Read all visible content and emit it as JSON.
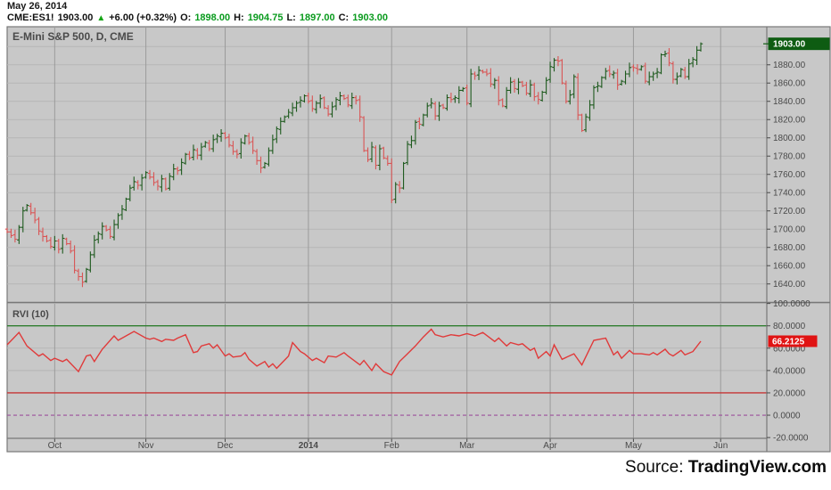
{
  "header": {
    "date": "May 26, 2014",
    "symbol": "CME:ES1!",
    "last": "1903.00",
    "up_arrow": "▲",
    "change": "+6.00 (+0.32%)",
    "open_label": "O:",
    "open": "1898.00",
    "high_label": "H:",
    "high": "1904.75",
    "low_label": "L:",
    "low": "1897.00",
    "close_label": "C:",
    "close": "1903.00"
  },
  "footer": {
    "source_label": "Source: ",
    "source_name": "TradingView.com"
  },
  "chart_data": {
    "type": "ohlc-bar",
    "title": "E-Mini S&P 500, D, CME",
    "timeframe": "D",
    "grid": true,
    "legend_position": "top-left",
    "price_pane": {
      "ylim": [
        1620.2,
        1921.7
      ],
      "axis_ticks": [
        1880,
        1860,
        1840,
        1820,
        1800,
        1780,
        1760,
        1740,
        1720,
        1700,
        1680,
        1660,
        1640
      ],
      "grid_levels": [
        1900,
        1880,
        1860,
        1840,
        1820,
        1800,
        1780,
        1760,
        1740,
        1720,
        1700,
        1680,
        1660,
        1640
      ],
      "last_price": 1903.0,
      "last_price_label": "1903.00",
      "closes": [
        1697,
        1693,
        1689,
        1702,
        1720,
        1726,
        1718,
        1710,
        1698,
        1692,
        1687,
        1681,
        1687,
        1678,
        1690,
        1684,
        1676,
        1655,
        1648,
        1642,
        1656,
        1672,
        1688,
        1695,
        1703,
        1699,
        1692,
        1705,
        1715,
        1722,
        1733,
        1745,
        1752,
        1748,
        1756,
        1762,
        1757,
        1751,
        1747,
        1755,
        1744,
        1758,
        1766,
        1764,
        1773,
        1782,
        1778,
        1787,
        1781,
        1790,
        1795,
        1788,
        1798,
        1802,
        1805,
        1800,
        1792,
        1785,
        1782,
        1795,
        1802,
        1795,
        1786,
        1775,
        1767,
        1772,
        1786,
        1798,
        1810,
        1818,
        1823,
        1828,
        1833,
        1838,
        1841,
        1846,
        1840,
        1832,
        1838,
        1843,
        1833,
        1826,
        1834,
        1842,
        1846,
        1843,
        1836,
        1844,
        1841,
        1823,
        1786,
        1776,
        1790,
        1770,
        1788,
        1778,
        1772,
        1732,
        1749,
        1745,
        1772,
        1793,
        1797,
        1817,
        1815,
        1825,
        1835,
        1838,
        1824,
        1835,
        1833,
        1844,
        1842,
        1844,
        1852,
        1854,
        1838,
        1870,
        1868,
        1874,
        1872,
        1870,
        1859,
        1863,
        1841,
        1835,
        1852,
        1861,
        1854,
        1861,
        1857,
        1849,
        1858,
        1845,
        1842,
        1850,
        1863,
        1878,
        1885,
        1884,
        1860,
        1840,
        1847,
        1867,
        1825,
        1808,
        1823,
        1836,
        1855,
        1857,
        1866,
        1873,
        1870,
        1871,
        1858,
        1862,
        1870,
        1877,
        1877,
        1875,
        1878,
        1862,
        1867,
        1870,
        1872,
        1891,
        1892,
        1882,
        1864,
        1867,
        1875,
        1867,
        1881,
        1886,
        1896,
        1903
      ]
    },
    "rvi_pane": {
      "label": "RVI (10)",
      "ylim": [
        -19.9,
        99.7
      ],
      "axis_ticks": [
        {
          "v": 100,
          "t": "100.0000"
        },
        {
          "v": 80,
          "t": "80.0000"
        },
        {
          "v": 60,
          "t": "60.0000"
        },
        {
          "v": 40,
          "t": "40.0000"
        },
        {
          "v": 20,
          "t": "20.0000"
        },
        {
          "v": 0,
          "t": "0.0000"
        },
        {
          "v": -20,
          "t": "-20.0000"
        }
      ],
      "plain_grid_levels": [
        60,
        40
      ],
      "upper_band": 80,
      "lower_band": 20,
      "zero_line": 0,
      "value": 66.2125,
      "value_label": "66.2125",
      "points": [
        [
          0,
          63
        ],
        [
          3,
          74
        ],
        [
          5,
          62
        ],
        [
          8,
          53
        ],
        [
          9,
          55
        ],
        [
          11,
          49
        ],
        [
          12,
          51
        ],
        [
          14,
          48
        ],
        [
          15,
          50
        ],
        [
          18,
          39
        ],
        [
          20,
          53
        ],
        [
          21,
          54
        ],
        [
          22,
          48
        ],
        [
          24,
          59
        ],
        [
          27,
          71
        ],
        [
          28,
          67
        ],
        [
          30,
          71
        ],
        [
          32,
          75
        ],
        [
          35,
          69
        ],
        [
          36,
          68
        ],
        [
          37,
          69
        ],
        [
          39,
          66
        ],
        [
          40,
          68
        ],
        [
          42,
          67
        ],
        [
          43,
          69
        ],
        [
          45,
          72
        ],
        [
          47,
          56
        ],
        [
          48,
          57
        ],
        [
          49,
          62
        ],
        [
          51,
          64
        ],
        [
          52,
          60
        ],
        [
          53,
          63
        ],
        [
          55,
          53
        ],
        [
          56,
          55
        ],
        [
          57,
          52
        ],
        [
          59,
          53
        ],
        [
          60,
          56
        ],
        [
          61,
          50
        ],
        [
          63,
          44
        ],
        [
          65,
          48
        ],
        [
          66,
          43
        ],
        [
          67,
          46
        ],
        [
          68,
          42
        ],
        [
          71,
          53
        ],
        [
          72,
          65
        ],
        [
          73,
          61
        ],
        [
          74,
          57
        ],
        [
          75,
          55
        ],
        [
          77,
          49
        ],
        [
          78,
          51
        ],
        [
          80,
          47
        ],
        [
          81,
          53
        ],
        [
          83,
          52
        ],
        [
          85,
          56
        ],
        [
          86,
          53
        ],
        [
          89,
          45
        ],
        [
          90,
          49
        ],
        [
          92,
          40
        ],
        [
          93,
          46
        ],
        [
          95,
          39
        ],
        [
          97,
          36
        ],
        [
          99,
          48
        ],
        [
          101,
          55
        ],
        [
          103,
          62
        ],
        [
          105,
          70
        ],
        [
          107,
          77
        ],
        [
          108,
          72
        ],
        [
          110,
          70
        ],
        [
          112,
          72
        ],
        [
          114,
          71
        ],
        [
          116,
          73
        ],
        [
          118,
          71
        ],
        [
          120,
          74
        ],
        [
          123,
          66
        ],
        [
          124,
          69
        ],
        [
          126,
          62
        ],
        [
          127,
          65
        ],
        [
          129,
          63
        ],
        [
          130,
          64
        ],
        [
          132,
          58
        ],
        [
          133,
          60
        ],
        [
          134,
          51
        ],
        [
          136,
          57
        ],
        [
          137,
          53
        ],
        [
          138,
          63
        ],
        [
          140,
          50
        ],
        [
          143,
          55
        ],
        [
          145,
          45
        ],
        [
          148,
          67
        ],
        [
          151,
          69
        ],
        [
          153,
          54
        ],
        [
          154,
          57
        ],
        [
          155,
          51
        ],
        [
          157,
          58
        ],
        [
          158,
          55
        ],
        [
          160,
          55
        ],
        [
          162,
          54
        ],
        [
          163,
          56
        ],
        [
          164,
          54
        ],
        [
          166,
          59
        ],
        [
          167,
          55
        ],
        [
          168,
          53
        ],
        [
          170,
          58
        ],
        [
          171,
          54
        ],
        [
          173,
          57
        ],
        [
          175,
          66.2125
        ]
      ]
    },
    "x_axis": {
      "ticks": [
        {
          "label": "Oct",
          "bar": 12
        },
        {
          "label": "Nov",
          "bar": 35
        },
        {
          "label": "Dec",
          "bar": 55
        },
        {
          "label": "2014",
          "bar": 76,
          "bold": true
        },
        {
          "label": "Feb",
          "bar": 97
        },
        {
          "label": "Mar",
          "bar": 116
        },
        {
          "label": "Apr",
          "bar": 137
        },
        {
          "label": "May",
          "bar": 158
        },
        {
          "label": "Jun",
          "bar": 180
        }
      ]
    },
    "colors": {
      "bg": "#c8c8c8",
      "frame": "#787878",
      "grid_h": "#b5b5b5",
      "grid_v": "#9b9b9b",
      "bar_up": "#1e5a1e",
      "bar_down": "#d95555",
      "rvi_line": "#e03a3a",
      "band_upper": "#2f7d2f",
      "band_lower": "#c63434",
      "zero_dash": "#9b4f9b",
      "last_label_bg": "#0e5c12",
      "last_label_fg": "#ffffff",
      "rvi_label_bg": "#e01313",
      "rvi_label_fg": "#ffffff",
      "axis_text": "#4a4a4a",
      "title_text": "#4a4a4a"
    }
  }
}
